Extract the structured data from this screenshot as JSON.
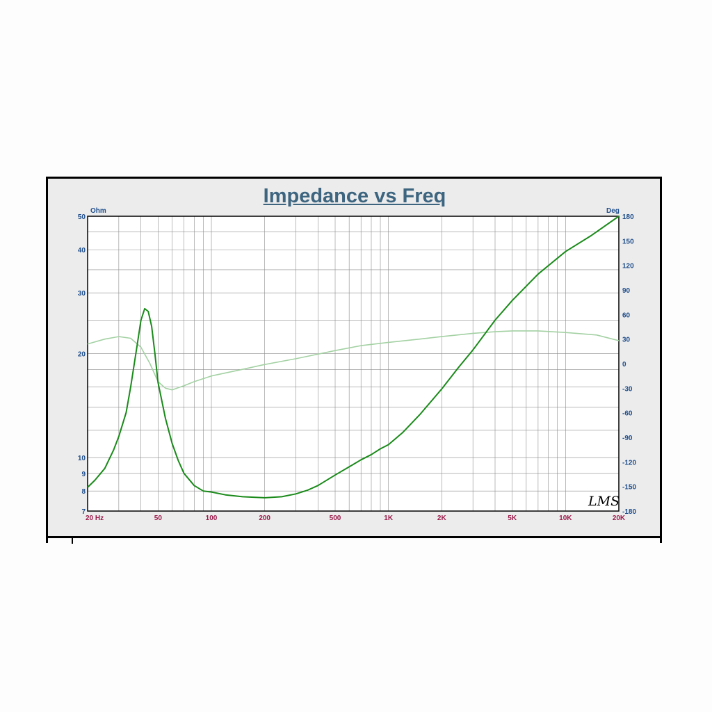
{
  "chart_data": {
    "type": "line",
    "title": "Impedance vs Freq",
    "left_axis": {
      "unit_label": "Ohm",
      "scale": "log",
      "range": [
        7,
        50
      ],
      "ticks": [
        {
          "v": 50,
          "label": "50"
        },
        {
          "v": 40,
          "label": "40"
        },
        {
          "v": 30,
          "label": "30"
        },
        {
          "v": 20,
          "label": "20"
        },
        {
          "v": 10,
          "label": "10"
        },
        {
          "v": 9,
          "label": "9"
        },
        {
          "v": 8,
          "label": "8"
        },
        {
          "v": 7,
          "label": "7"
        }
      ]
    },
    "right_axis": {
      "unit_label": "Deg",
      "scale": "linear",
      "range": [
        -180,
        180
      ],
      "ticks": [
        "180",
        "150",
        "120",
        "90",
        "60",
        "30",
        "0",
        "-30",
        "-60",
        "-90",
        "-120",
        "-150",
        "-180"
      ]
    },
    "x_axis": {
      "scale": "log",
      "range": [
        20,
        20000
      ],
      "ticks": [
        {
          "v": 20,
          "label": "20  Hz"
        },
        {
          "v": 50,
          "label": "50"
        },
        {
          "v": 100,
          "label": "100"
        },
        {
          "v": 200,
          "label": "200"
        },
        {
          "v": 500,
          "label": "500"
        },
        {
          "v": 1000,
          "label": "1K"
        },
        {
          "v": 2000,
          "label": "2K"
        },
        {
          "v": 5000,
          "label": "5K"
        },
        {
          "v": 10000,
          "label": "10K"
        },
        {
          "v": 20000,
          "label": "20K"
        }
      ]
    },
    "grid": true,
    "logo": "LMS",
    "series": [
      {
        "axis": "left",
        "color": "#1a8a1a",
        "x": [
          20,
          22,
          25,
          28,
          30,
          33,
          35,
          38,
          40,
          42,
          44,
          46,
          48,
          50,
          55,
          60,
          65,
          70,
          80,
          90,
          100,
          120,
          150,
          200,
          250,
          300,
          350,
          400,
          500,
          600,
          700,
          800,
          900,
          1000,
          1200,
          1500,
          2000,
          2500,
          3000,
          4000,
          5000,
          7000,
          10000,
          14000,
          20000
        ],
        "y": [
          8.2,
          8.6,
          9.3,
          10.5,
          11.5,
          13.5,
          16.0,
          21.0,
          25.0,
          27.0,
          26.5,
          24.0,
          20.0,
          16.5,
          13.0,
          11.0,
          9.8,
          9.0,
          8.3,
          8.0,
          7.95,
          7.8,
          7.7,
          7.65,
          7.7,
          7.85,
          8.05,
          8.3,
          8.9,
          9.4,
          9.85,
          10.2,
          10.6,
          10.9,
          11.8,
          13.3,
          15.8,
          18.3,
          20.5,
          25.0,
          28.5,
          34.0,
          39.5,
          44.0,
          50.0
        ]
      },
      {
        "axis": "right",
        "color": "#a3d1a3",
        "x": [
          20,
          25,
          30,
          35,
          40,
          45,
          50,
          55,
          60,
          70,
          80,
          100,
          150,
          200,
          300,
          500,
          700,
          1000,
          1500,
          2000,
          3000,
          4000,
          5000,
          7000,
          10000,
          15000,
          20000
        ],
        "y": [
          24,
          30,
          33,
          31,
          20,
          0,
          -22,
          -30,
          -32,
          -27,
          -22,
          -15,
          -7,
          -1,
          6,
          16,
          22,
          26,
          30,
          33,
          37,
          39,
          40,
          40,
          38,
          35,
          28
        ]
      }
    ]
  }
}
